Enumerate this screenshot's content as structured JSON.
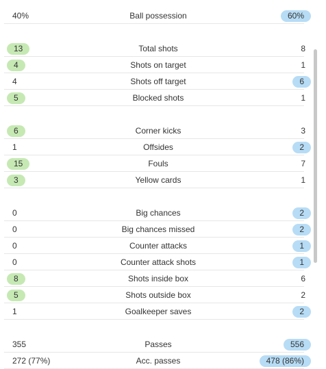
{
  "groups": [
    {
      "rows": [
        {
          "home": "40%",
          "label": "Ball possession",
          "away": "60%",
          "winner": "away"
        }
      ]
    },
    {
      "rows": [
        {
          "home": "13",
          "label": "Total shots",
          "away": "8",
          "winner": "home"
        },
        {
          "home": "4",
          "label": "Shots on target",
          "away": "1",
          "winner": "home"
        },
        {
          "home": "4",
          "label": "Shots off target",
          "away": "6",
          "winner": "away"
        },
        {
          "home": "5",
          "label": "Blocked shots",
          "away": "1",
          "winner": "home"
        }
      ]
    },
    {
      "rows": [
        {
          "home": "6",
          "label": "Corner kicks",
          "away": "3",
          "winner": "home"
        },
        {
          "home": "1",
          "label": "Offsides",
          "away": "2",
          "winner": "away"
        },
        {
          "home": "15",
          "label": "Fouls",
          "away": "7",
          "winner": "home"
        },
        {
          "home": "3",
          "label": "Yellow cards",
          "away": "1",
          "winner": "home"
        }
      ]
    },
    {
      "rows": [
        {
          "home": "0",
          "label": "Big chances",
          "away": "2",
          "winner": "away"
        },
        {
          "home": "0",
          "label": "Big chances missed",
          "away": "2",
          "winner": "away"
        },
        {
          "home": "0",
          "label": "Counter attacks",
          "away": "1",
          "winner": "away"
        },
        {
          "home": "0",
          "label": "Counter attack shots",
          "away": "1",
          "winner": "away"
        },
        {
          "home": "8",
          "label": "Shots inside box",
          "away": "6",
          "winner": "home"
        },
        {
          "home": "5",
          "label": "Shots outside box",
          "away": "2",
          "winner": "home"
        },
        {
          "home": "1",
          "label": "Goalkeeper saves",
          "away": "2",
          "winner": "away"
        }
      ]
    },
    {
      "rows": [
        {
          "home": "355",
          "label": "Passes",
          "away": "556",
          "winner": "away"
        },
        {
          "home": "272 (77%)",
          "label": "Acc. passes",
          "away": "478 (86%)",
          "winner": "away"
        }
      ]
    }
  ],
  "colors": {
    "home_highlight": "#c6e9b4",
    "away_highlight": "#b7dcf5",
    "divider": "#e6e6e6",
    "text": "#333333"
  }
}
